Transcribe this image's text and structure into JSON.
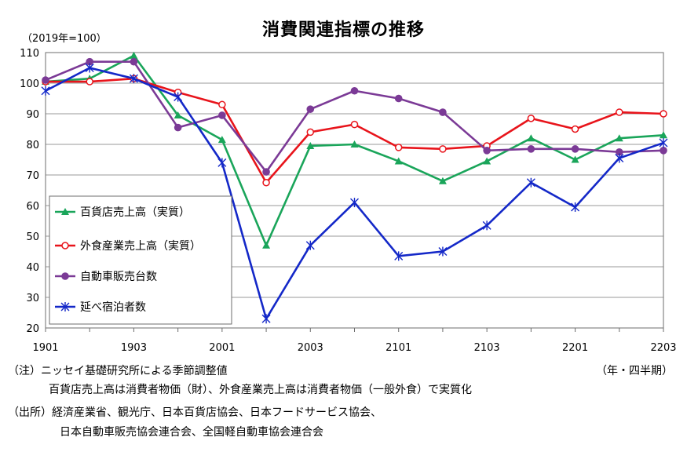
{
  "chart_data": {
    "type": "line",
    "title": "消費関連指標の推移",
    "unit_label": "（2019年=100）",
    "period_label": "（年・四半期）",
    "ylim": [
      20,
      110
    ],
    "yticks": [
      20,
      30,
      40,
      50,
      60,
      70,
      80,
      90,
      100,
      110
    ],
    "grid": "horizontal",
    "legend_position": "lower-left",
    "x": [
      "1901",
      "1902",
      "1903",
      "1904",
      "2001",
      "2002",
      "2003",
      "2004",
      "2101",
      "2102",
      "2103",
      "2104",
      "2201",
      "2202",
      "2203"
    ],
    "xtick_labels": [
      "1901",
      "1903",
      "2001",
      "2003",
      "2101",
      "2103",
      "2201",
      "2203"
    ],
    "series": [
      {
        "name": "百貨店売上高（実質）",
        "color": "#1aa55a",
        "marker": "triangle",
        "values": [
          100.5,
          101.5,
          109.0,
          89.5,
          81.5,
          47.0,
          79.5,
          80.0,
          74.5,
          68.0,
          74.5,
          82.0,
          75.0,
          82.0,
          83.0
        ]
      },
      {
        "name": "外食産業売上高（実質）",
        "color": "#e8141b",
        "marker": "open-circle",
        "values": [
          100.5,
          100.5,
          101.5,
          97.0,
          93.0,
          67.5,
          84.0,
          86.5,
          79.0,
          78.5,
          79.5,
          88.5,
          85.0,
          90.5,
          90.0
        ]
      },
      {
        "name": "自動車販売台数",
        "color": "#7b3a96",
        "marker": "filled-circle",
        "values": [
          101.0,
          107.0,
          107.0,
          85.5,
          89.5,
          71.0,
          91.5,
          97.5,
          95.0,
          90.5,
          78.0,
          78.5,
          78.5,
          77.5,
          78.0
        ]
      },
      {
        "name": "延べ宿泊者数",
        "color": "#1428c8",
        "marker": "star",
        "values": [
          97.5,
          105.0,
          101.5,
          95.5,
          74.0,
          23.0,
          47.0,
          61.0,
          43.5,
          45.0,
          53.5,
          67.5,
          59.5,
          75.5,
          80.5
        ]
      }
    ]
  },
  "notes": {
    "line1": "（注）ニッセイ基礎研究所による季節調整値",
    "line2": "百貨店売上高は消費者物価（財）、外食産業売上高は消費者物価（一般外食）で実質化",
    "line3": "（出所）経済産業省、観光庁、日本百貨店協会、日本フードサービス協会、",
    "line4": "日本自動車販売協会連合会、全国軽自動車協会連合会"
  }
}
